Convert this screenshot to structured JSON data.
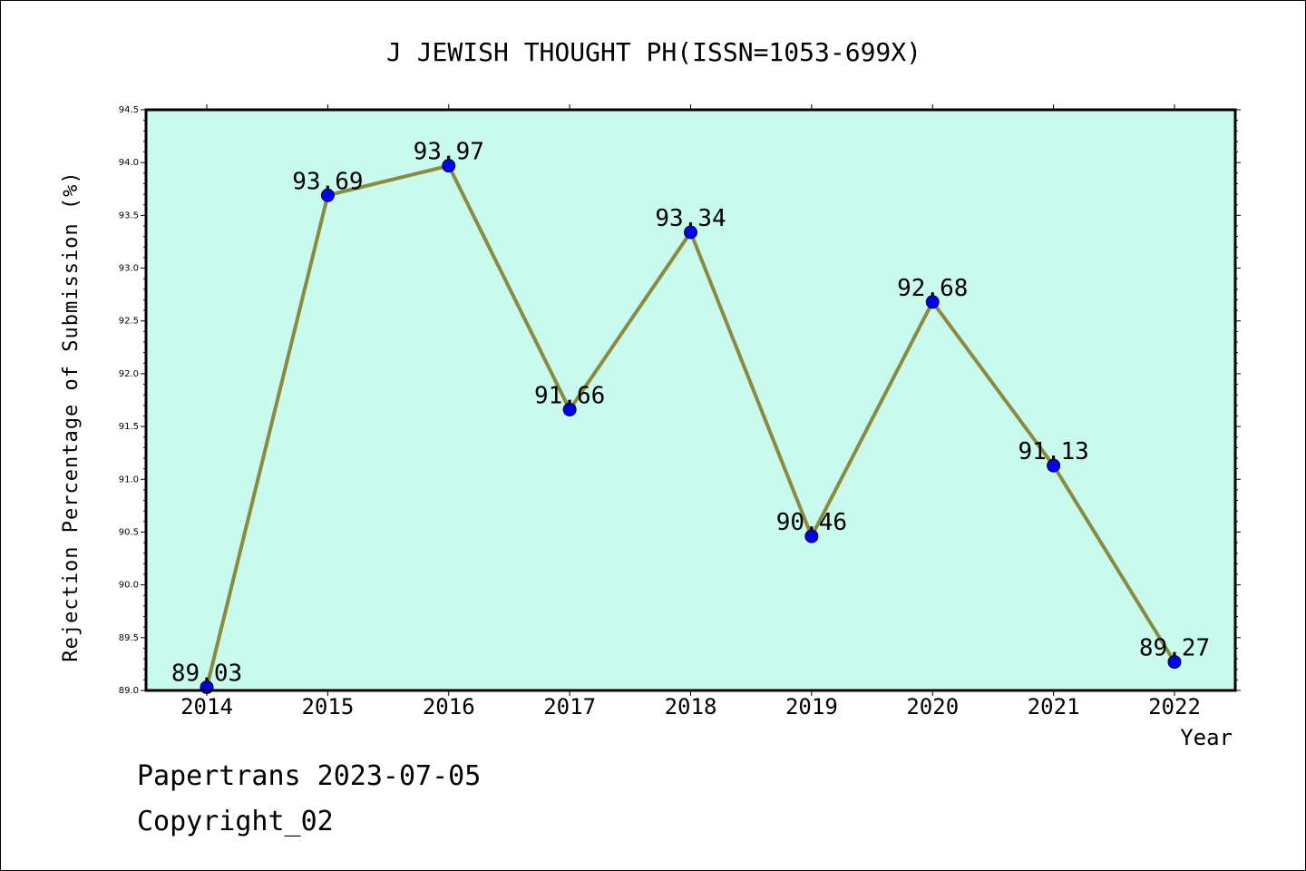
{
  "chart_data": {
    "type": "line",
    "title": "J JEWISH THOUGHT PH(ISSN=1053-699X)",
    "xlabel": "Year",
    "ylabel": "Rejection Percentage of Submission (%)",
    "categories": [
      "2014",
      "2015",
      "2016",
      "2017",
      "2018",
      "2019",
      "2020",
      "2021",
      "2022"
    ],
    "values": [
      89.03,
      93.69,
      93.97,
      91.66,
      93.34,
      90.46,
      92.68,
      91.13,
      89.27
    ],
    "data_labels": [
      "89.03",
      "93.69",
      "93.97",
      "91.66",
      "93.34",
      "90.46",
      "92.68",
      "91.13",
      "89.27"
    ],
    "ylim": [
      89.0,
      94.5
    ],
    "yticks": [
      "89.0",
      "89.5",
      "90.0",
      "90.5",
      "91.0",
      "91.5",
      "92.0",
      "92.5",
      "93.0",
      "93.5",
      "94.0",
      "94.5"
    ],
    "grid": false,
    "legend": "none",
    "colors": {
      "plot_background": "#c8fbee",
      "line": "#8b8a3e",
      "marker": "#0000ee"
    }
  },
  "footer": {
    "line1": "Papertrans 2023-07-05",
    "line2": "Copyright_02"
  }
}
